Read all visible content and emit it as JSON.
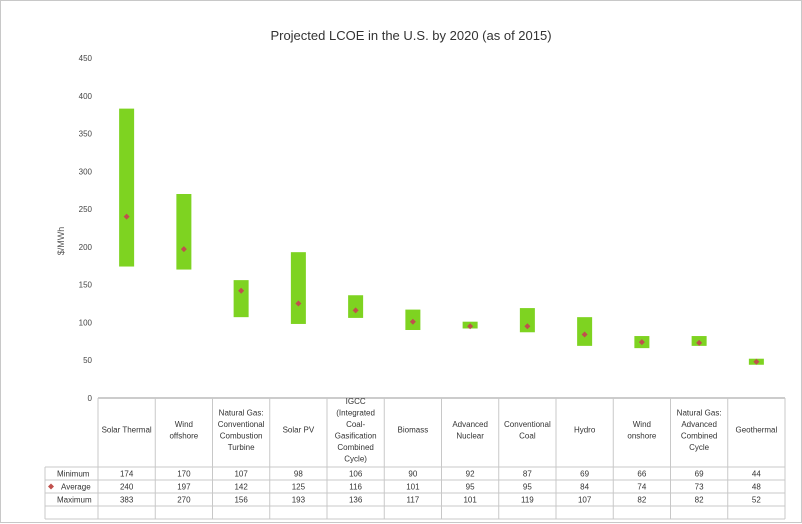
{
  "chart_data": {
    "type": "bar",
    "title": "Projected LCOE in the U.S. by 2020 (as of 2015)",
    "ylabel": "$/MWh",
    "ylim": [
      0,
      450
    ],
    "yticks": [
      0,
      50,
      100,
      150,
      200,
      250,
      300,
      350,
      400,
      450
    ],
    "grid": false,
    "bar_color": "#7ed321",
    "marker_color": "#c0504d",
    "categories": [
      [
        "Solar Thermal"
      ],
      [
        "Wind",
        "offshore"
      ],
      [
        "Natural Gas:",
        "Conventional",
        "Combustion",
        "Turbine"
      ],
      [
        "Solar PV"
      ],
      [
        "IGCC",
        "(Integrated",
        "Coal-",
        "Gasification",
        "Combined",
        "Cycle)"
      ],
      [
        "Biomass"
      ],
      [
        "Advanced",
        "Nuclear"
      ],
      [
        "Conventional",
        "Coal"
      ],
      [
        "Hydro"
      ],
      [
        "Wind",
        "onshore"
      ],
      [
        "Natural Gas:",
        "Advanced",
        "Combined",
        "Cycle"
      ],
      [
        "Geothermal"
      ]
    ],
    "series": [
      {
        "name": "Minimum",
        "values": [
          174,
          170,
          107,
          98,
          106,
          90,
          92,
          87,
          69,
          66,
          69,
          44
        ]
      },
      {
        "name": "Average",
        "values": [
          240,
          197,
          142,
          125,
          116,
          101,
          95,
          95,
          84,
          74,
          73,
          48
        ]
      },
      {
        "name": "Maximum",
        "values": [
          383,
          270,
          156,
          193,
          136,
          117,
          101,
          119,
          107,
          82,
          82,
          52
        ]
      }
    ]
  }
}
